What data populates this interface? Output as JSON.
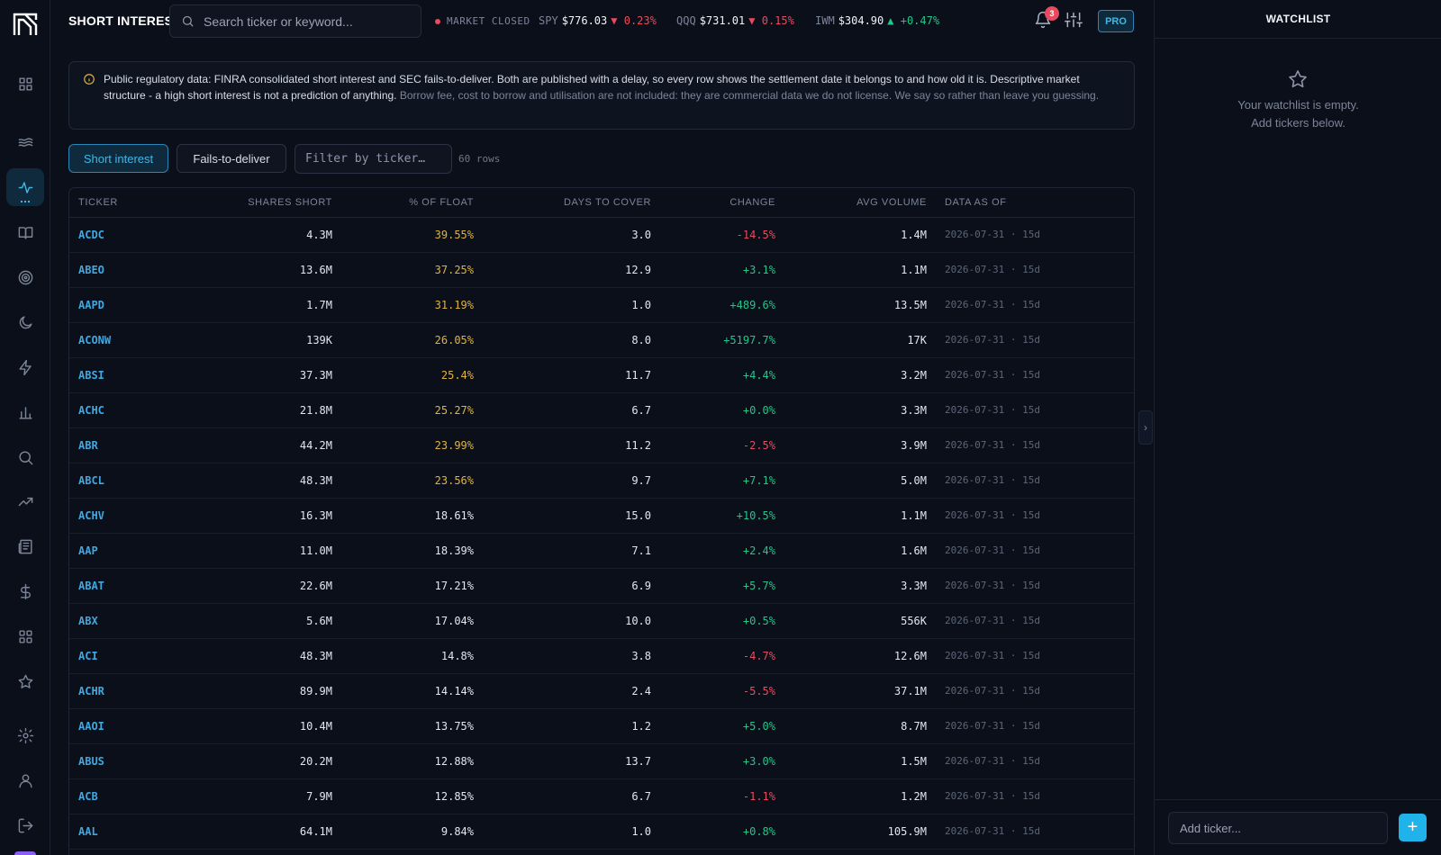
{
  "app": {
    "title": "SHORT INTEREST"
  },
  "search": {
    "placeholder": "Search ticker or keyword..."
  },
  "market": {
    "status": "MARKET CLOSED",
    "tickers": [
      {
        "symbol": "SPY",
        "price": "$776.03",
        "change": "▼ 0.23%",
        "dir": "dn"
      },
      {
        "symbol": "QQQ",
        "price": "$731.01",
        "change": "▼ 0.15%",
        "dir": "dn"
      },
      {
        "symbol": "IWM",
        "price": "$304.90",
        "change": "▲ +0.47%",
        "dir": "up"
      }
    ]
  },
  "notifications": {
    "count": "3"
  },
  "plan": {
    "label": "PRO"
  },
  "notice": {
    "primary": "Public regulatory data: FINRA consolidated short interest and SEC fails-to-deliver. Both are published with a delay, so every row shows the settlement date it belongs to and how old it is. Descriptive market structure - a high short interest is not a prediction of anything.",
    "secondary": "Borrow fee, cost to borrow and utilisation are not included: they are commercial data we do not license. We say so rather than leave you guessing."
  },
  "tabs": {
    "short_interest": "Short interest",
    "fails_to_deliver": "Fails-to-deliver",
    "active": "short_interest"
  },
  "filter": {
    "placeholder": "Filter by ticker…"
  },
  "row_count": "60 rows",
  "table": {
    "columns": [
      "TICKER",
      "SHARES SHORT",
      "% OF FLOAT",
      "DAYS TO COVER",
      "CHANGE",
      "AVG VOLUME",
      "DATA AS OF"
    ],
    "rows": [
      [
        "ACDC",
        "4.3M",
        "39.55%",
        "3.0",
        "-14.5%",
        "1.4M",
        "2026-07-31 · 15d"
      ],
      [
        "ABEO",
        "13.6M",
        "37.25%",
        "12.9",
        "+3.1%",
        "1.1M",
        "2026-07-31 · 15d"
      ],
      [
        "AAPD",
        "1.7M",
        "31.19%",
        "1.0",
        "+489.6%",
        "13.5M",
        "2026-07-31 · 15d"
      ],
      [
        "ACONW",
        "139K",
        "26.05%",
        "8.0",
        "+5197.7%",
        "17K",
        "2026-07-31 · 15d"
      ],
      [
        "ABSI",
        "37.3M",
        "25.4%",
        "11.7",
        "+4.4%",
        "3.2M",
        "2026-07-31 · 15d"
      ],
      [
        "ACHC",
        "21.8M",
        "25.27%",
        "6.7",
        "+0.0%",
        "3.3M",
        "2026-07-31 · 15d"
      ],
      [
        "ABR",
        "44.2M",
        "23.99%",
        "11.2",
        "-2.5%",
        "3.9M",
        "2026-07-31 · 15d"
      ],
      [
        "ABCL",
        "48.3M",
        "23.56%",
        "9.7",
        "+7.1%",
        "5.0M",
        "2026-07-31 · 15d"
      ],
      [
        "ACHV",
        "16.3M",
        "18.61%",
        "15.0",
        "+10.5%",
        "1.1M",
        "2026-07-31 · 15d"
      ],
      [
        "AAP",
        "11.0M",
        "18.39%",
        "7.1",
        "+2.4%",
        "1.6M",
        "2026-07-31 · 15d"
      ],
      [
        "ABAT",
        "22.6M",
        "17.21%",
        "6.9",
        "+5.7%",
        "3.3M",
        "2026-07-31 · 15d"
      ],
      [
        "ABX",
        "5.6M",
        "17.04%",
        "10.0",
        "+0.5%",
        "556K",
        "2026-07-31 · 15d"
      ],
      [
        "ACI",
        "48.3M",
        "14.8%",
        "3.8",
        "-4.7%",
        "12.6M",
        "2026-07-31 · 15d"
      ],
      [
        "ACHR",
        "89.9M",
        "14.14%",
        "2.4",
        "-5.5%",
        "37.1M",
        "2026-07-31 · 15d"
      ],
      [
        "AAOI",
        "10.4M",
        "13.75%",
        "1.2",
        "+5.0%",
        "8.7M",
        "2026-07-31 · 15d"
      ],
      [
        "ABUS",
        "20.2M",
        "12.88%",
        "13.7",
        "+3.0%",
        "1.5M",
        "2026-07-31 · 15d"
      ],
      [
        "ACB",
        "7.9M",
        "12.85%",
        "6.7",
        "-1.1%",
        "1.2M",
        "2026-07-31 · 15d"
      ],
      [
        "AAL",
        "64.1M",
        "9.84%",
        "1.0",
        "+0.8%",
        "105.9M",
        "2026-07-31 · 15d"
      ]
    ]
  },
  "watchlist": {
    "title": "WATCHLIST",
    "empty_line1": "Your watchlist is empty.",
    "empty_line2": "Add tickers below.",
    "add_placeholder": "Add ticker...",
    "add_button": "+"
  },
  "colors": {
    "accent": "#3fb8e8",
    "negative": "#e84a5f",
    "positive": "#22c58b",
    "highlight": "#e0b43c"
  }
}
